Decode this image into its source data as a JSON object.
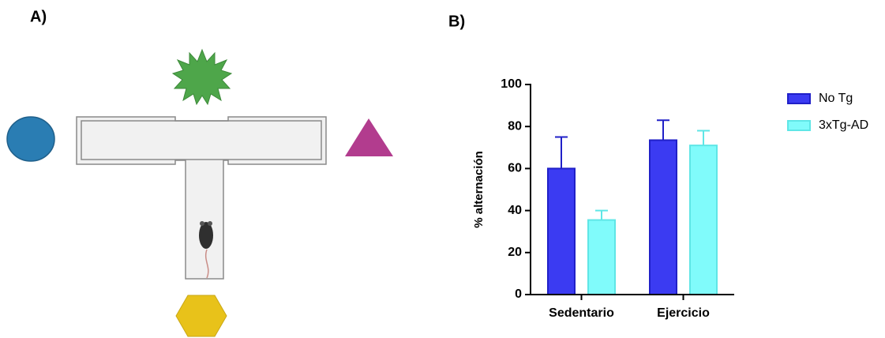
{
  "panels": {
    "a": "A)",
    "b": "B)"
  },
  "chart_data": {
    "type": "bar",
    "categories": [
      "Sedentario",
      "Ejercicio"
    ],
    "series": [
      {
        "name": "No Tg",
        "color": "#3b3bf2",
        "values": [
          60,
          73.5
        ],
        "errors": [
          15,
          9.5
        ]
      },
      {
        "name": "3xTg-AD",
        "color": "#80fbfb",
        "values": [
          35.5,
          71
        ],
        "errors": [
          4.5,
          7
        ]
      }
    ],
    "ylabel": "% alternación",
    "ylim": [
      0,
      100
    ],
    "yticks": [
      0,
      20,
      40,
      60,
      80,
      100
    ],
    "legend": "right"
  }
}
